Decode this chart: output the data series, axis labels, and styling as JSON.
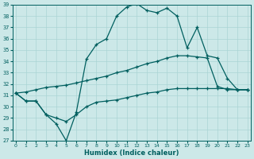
{
  "xlabel": "Humidex (Indice chaleur)",
  "background_color": "#cce8e8",
  "grid_color": "#aad4d4",
  "line_color": "#005f5f",
  "x": [
    0,
    1,
    2,
    3,
    4,
    5,
    6,
    7,
    8,
    9,
    10,
    11,
    12,
    13,
    14,
    15,
    16,
    17,
    18,
    19,
    20,
    21,
    22,
    23
  ],
  "line1": [
    31.2,
    30.5,
    30.5,
    29.3,
    28.5,
    27.0,
    29.5,
    34.2,
    35.5,
    36.0,
    38.0,
    38.8,
    39.1,
    38.5,
    38.3,
    38.7,
    38.0,
    35.2,
    37.0,
    34.5,
    34.3,
    32.5,
    31.5,
    31.5
  ],
  "line2": [
    31.2,
    30.5,
    30.5,
    29.3,
    29.0,
    28.7,
    29.3,
    30.0,
    30.4,
    30.5,
    30.6,
    30.8,
    31.0,
    31.2,
    31.3,
    31.5,
    31.6,
    31.6,
    31.6,
    31.6,
    31.6,
    31.6,
    31.5,
    31.5
  ],
  "line3": [
    31.2,
    31.3,
    31.5,
    31.7,
    31.8,
    31.9,
    32.1,
    32.3,
    32.5,
    32.7,
    33.0,
    33.2,
    33.5,
    33.8,
    34.0,
    34.3,
    34.5,
    34.5,
    34.4,
    34.3,
    31.8,
    31.5,
    31.5,
    31.5
  ],
  "ylim": [
    27,
    39
  ],
  "yticks": [
    27,
    28,
    29,
    30,
    31,
    32,
    33,
    34,
    35,
    36,
    37,
    38,
    39
  ],
  "xticks": [
    0,
    1,
    2,
    3,
    4,
    5,
    6,
    7,
    8,
    9,
    10,
    11,
    12,
    13,
    14,
    15,
    16,
    17,
    18,
    19,
    20,
    21,
    22,
    23
  ],
  "xlim": [
    -0.3,
    23.3
  ]
}
